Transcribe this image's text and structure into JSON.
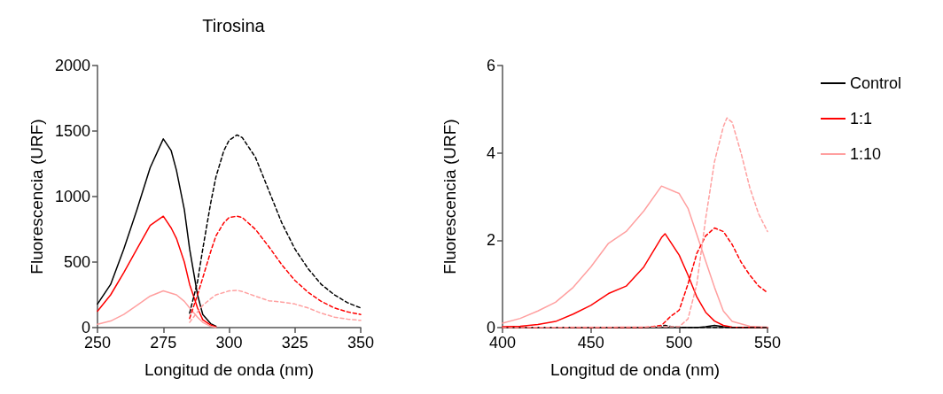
{
  "chart_data": [
    {
      "type": "line",
      "title": "Tirosina",
      "xlabel": "Longitud de onda (nm)",
      "ylabel": "Fluorescencia (URF)",
      "xlim": [
        250,
        350
      ],
      "xticks": [
        250,
        275,
        300,
        325,
        350
      ],
      "ylim": [
        0,
        2000
      ],
      "yticks": [
        0,
        500,
        1000,
        1500,
        2000
      ],
      "grid": false,
      "legend": false,
      "marker": "none",
      "series": [
        {
          "color": "#000000",
          "line_style": "solid",
          "x": [
            250,
            255,
            260,
            265,
            270,
            275,
            278,
            280,
            283,
            285,
            288,
            290,
            293,
            295
          ],
          "values": [
            180,
            330,
            600,
            900,
            1220,
            1440,
            1350,
            1200,
            900,
            600,
            250,
            100,
            30,
            10
          ]
        },
        {
          "color": "#ff0000",
          "line_style": "solid",
          "x": [
            250,
            255,
            260,
            265,
            270,
            275,
            278,
            280,
            283,
            285,
            288,
            290,
            293,
            295
          ],
          "values": [
            125,
            250,
            420,
            600,
            780,
            850,
            760,
            680,
            500,
            330,
            150,
            60,
            20,
            5
          ]
        },
        {
          "color": "#ffa0a0",
          "line_style": "solid",
          "x": [
            250,
            255,
            260,
            265,
            270,
            275,
            280,
            283,
            285,
            288,
            290,
            293,
            295
          ],
          "values": [
            25,
            50,
            100,
            170,
            240,
            280,
            250,
            200,
            150,
            80,
            40,
            10,
            0
          ]
        },
        {
          "color": "#000000",
          "line_style": "dashed",
          "x": [
            285,
            288,
            290,
            293,
            295,
            298,
            300,
            303,
            305,
            310,
            315,
            320,
            325,
            330,
            335,
            340,
            345,
            350
          ],
          "values": [
            110,
            350,
            600,
            950,
            1150,
            1350,
            1430,
            1470,
            1450,
            1300,
            1050,
            800,
            600,
            450,
            330,
            250,
            190,
            150
          ]
        },
        {
          "color": "#ff0000",
          "line_style": "dashed",
          "x": [
            285,
            288,
            290,
            293,
            295,
            298,
            300,
            303,
            305,
            310,
            315,
            320,
            325,
            330,
            335,
            340,
            345,
            350
          ],
          "values": [
            70,
            250,
            380,
            580,
            700,
            800,
            840,
            850,
            840,
            750,
            620,
            480,
            360,
            270,
            200,
            150,
            120,
            100
          ]
        },
        {
          "color": "#ffa0a0",
          "line_style": "dashed",
          "x": [
            285,
            288,
            290,
            293,
            295,
            300,
            303,
            305,
            310,
            315,
            320,
            325,
            330,
            335,
            340,
            345,
            350
          ],
          "values": [
            40,
            120,
            170,
            220,
            250,
            280,
            285,
            275,
            240,
            205,
            195,
            180,
            150,
            110,
            80,
            65,
            55
          ]
        }
      ]
    },
    {
      "type": "line",
      "xlabel": "Longitud de onda (nm)",
      "ylabel": "Fluorescencia (URF)",
      "xlim": [
        400,
        550
      ],
      "xticks": [
        400,
        450,
        500,
        550
      ],
      "ylim": [
        0,
        6
      ],
      "yticks": [
        0,
        2,
        4,
        6
      ],
      "grid": false,
      "legend": "right",
      "marker": "none",
      "series": [
        {
          "name": "Control",
          "color": "#000000",
          "line_style": "solid",
          "x": [
            400,
            450,
            500,
            510,
            515,
            520,
            525,
            530,
            550
          ],
          "values": [
            0,
            0,
            0,
            0,
            0.02,
            0.05,
            0.02,
            0,
            0
          ]
        },
        {
          "name": "1:1",
          "color": "#ff0000",
          "line_style": "solid",
          "x": [
            400,
            410,
            420,
            430,
            440,
            450,
            460,
            470,
            480,
            490,
            492,
            500,
            505,
            510,
            515,
            520,
            525,
            530,
            550
          ],
          "values": [
            0.02,
            0.03,
            0.07,
            0.14,
            0.31,
            0.51,
            0.78,
            0.95,
            1.39,
            2.06,
            2.15,
            1.66,
            1.2,
            0.7,
            0.35,
            0.15,
            0.05,
            0.01,
            0
          ]
        },
        {
          "name": "1:10",
          "color": "#ffa0a0",
          "line_style": "solid",
          "x": [
            400,
            410,
            420,
            430,
            440,
            450,
            460,
            470,
            480,
            490,
            500,
            505,
            510,
            515,
            520,
            525,
            530,
            540,
            550
          ],
          "values": [
            0.1,
            0.21,
            0.38,
            0.58,
            0.92,
            1.39,
            1.93,
            2.2,
            2.67,
            3.24,
            3.07,
            2.73,
            2.13,
            1.52,
            0.92,
            0.38,
            0.14,
            0.03,
            0.01
          ]
        },
        {
          "color": "#000000",
          "line_style": "dashed",
          "x": [
            400,
            480,
            488,
            492,
            496,
            505,
            550
          ],
          "values": [
            0,
            0,
            0.02,
            0.05,
            0.02,
            0,
            0
          ]
        },
        {
          "color": "#ff0000",
          "line_style": "dashed",
          "x": [
            400,
            480,
            490,
            495,
            500,
            505,
            510,
            515,
            520,
            525,
            530,
            535,
            540,
            545,
            550
          ],
          "values": [
            0,
            0,
            0.05,
            0.25,
            0.4,
            1.0,
            1.7,
            2.1,
            2.28,
            2.2,
            1.9,
            1.5,
            1.2,
            0.95,
            0.8
          ]
        },
        {
          "color": "#ffa0a0",
          "line_style": "dashed",
          "x": [
            400,
            500,
            505,
            510,
            515,
            520,
            525,
            527,
            530,
            535,
            540,
            545,
            550
          ],
          "values": [
            0,
            0.02,
            0.2,
            1.0,
            2.5,
            3.8,
            4.6,
            4.8,
            4.7,
            4.0,
            3.2,
            2.6,
            2.2
          ]
        }
      ]
    }
  ]
}
